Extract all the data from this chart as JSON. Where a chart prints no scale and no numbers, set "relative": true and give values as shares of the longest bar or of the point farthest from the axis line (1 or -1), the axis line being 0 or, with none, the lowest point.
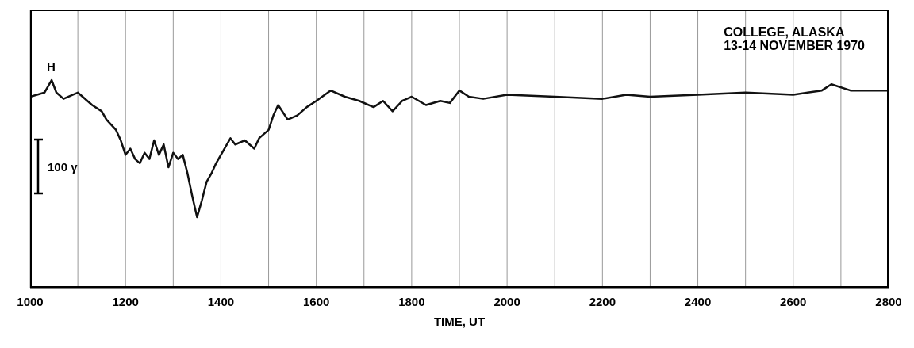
{
  "chart_data": {
    "type": "line",
    "title": "COLLEGE, ALASKA",
    "subtitle": "13-14 NOVEMBER 1970",
    "xlabel": "TIME, UT",
    "relative": true,
    "grid": "x",
    "marker": "none",
    "line_style": "solid",
    "annotations": [
      "100 γ"
    ],
    "x": [
      1000,
      1030,
      1045,
      1055,
      1070,
      1090,
      1100,
      1110,
      1130,
      1150,
      1160,
      1180,
      1190,
      1200,
      1210,
      1220,
      1230,
      1240,
      1250,
      1260,
      1270,
      1280,
      1290,
      1300,
      1310,
      1320,
      1330,
      1340,
      1350,
      1360,
      1370,
      1380,
      1390,
      1400,
      1420,
      1430,
      1450,
      1470,
      1480,
      1500,
      1510,
      1520,
      1540,
      1560,
      1580,
      1600,
      1630,
      1660,
      1690,
      1720,
      1740,
      1760,
      1780,
      1800,
      1830,
      1860,
      1880,
      1900,
      1920,
      1950,
      2000,
      2100,
      2200,
      2250,
      2300,
      2400,
      2500,
      2600,
      2660,
      2680,
      2720,
      2800
    ],
    "series": [
      {
        "name": "H",
        "color": "#111111",
        "values": [
          0.92,
          0.94,
          1.0,
          0.94,
          0.91,
          0.93,
          0.94,
          0.92,
          0.88,
          0.85,
          0.81,
          0.76,
          0.71,
          0.64,
          0.67,
          0.62,
          0.6,
          0.65,
          0.62,
          0.71,
          0.64,
          0.69,
          0.58,
          0.65,
          0.62,
          0.64,
          0.55,
          0.44,
          0.34,
          0.42,
          0.51,
          0.55,
          0.6,
          0.64,
          0.72,
          0.69,
          0.71,
          0.67,
          0.72,
          0.76,
          0.83,
          0.88,
          0.81,
          0.83,
          0.87,
          0.9,
          0.95,
          0.92,
          0.9,
          0.87,
          0.9,
          0.85,
          0.9,
          0.92,
          0.88,
          0.9,
          0.89,
          0.95,
          0.92,
          0.91,
          0.93,
          0.92,
          0.91,
          0.93,
          0.92,
          0.93,
          0.94,
          0.93,
          0.95,
          0.98,
          0.95,
          0.95
        ]
      }
    ],
    "xlim": [
      1000,
      2800
    ],
    "xticks": [
      1000,
      {
        "value": 1100,
        "label": null
      },
      1200,
      {
        "value": 1300,
        "label": null
      },
      1400,
      {
        "value": 1500,
        "label": null
      },
      1600,
      {
        "value": 1700,
        "label": null
      },
      1800,
      {
        "value": 1900,
        "label": null
      },
      2000,
      {
        "value": 2100,
        "label": null
      },
      2200,
      {
        "value": 2300,
        "label": null
      },
      2400,
      {
        "value": 2500,
        "label": null
      },
      2600,
      {
        "value": 2700,
        "label": null
      },
      2800
    ]
  }
}
